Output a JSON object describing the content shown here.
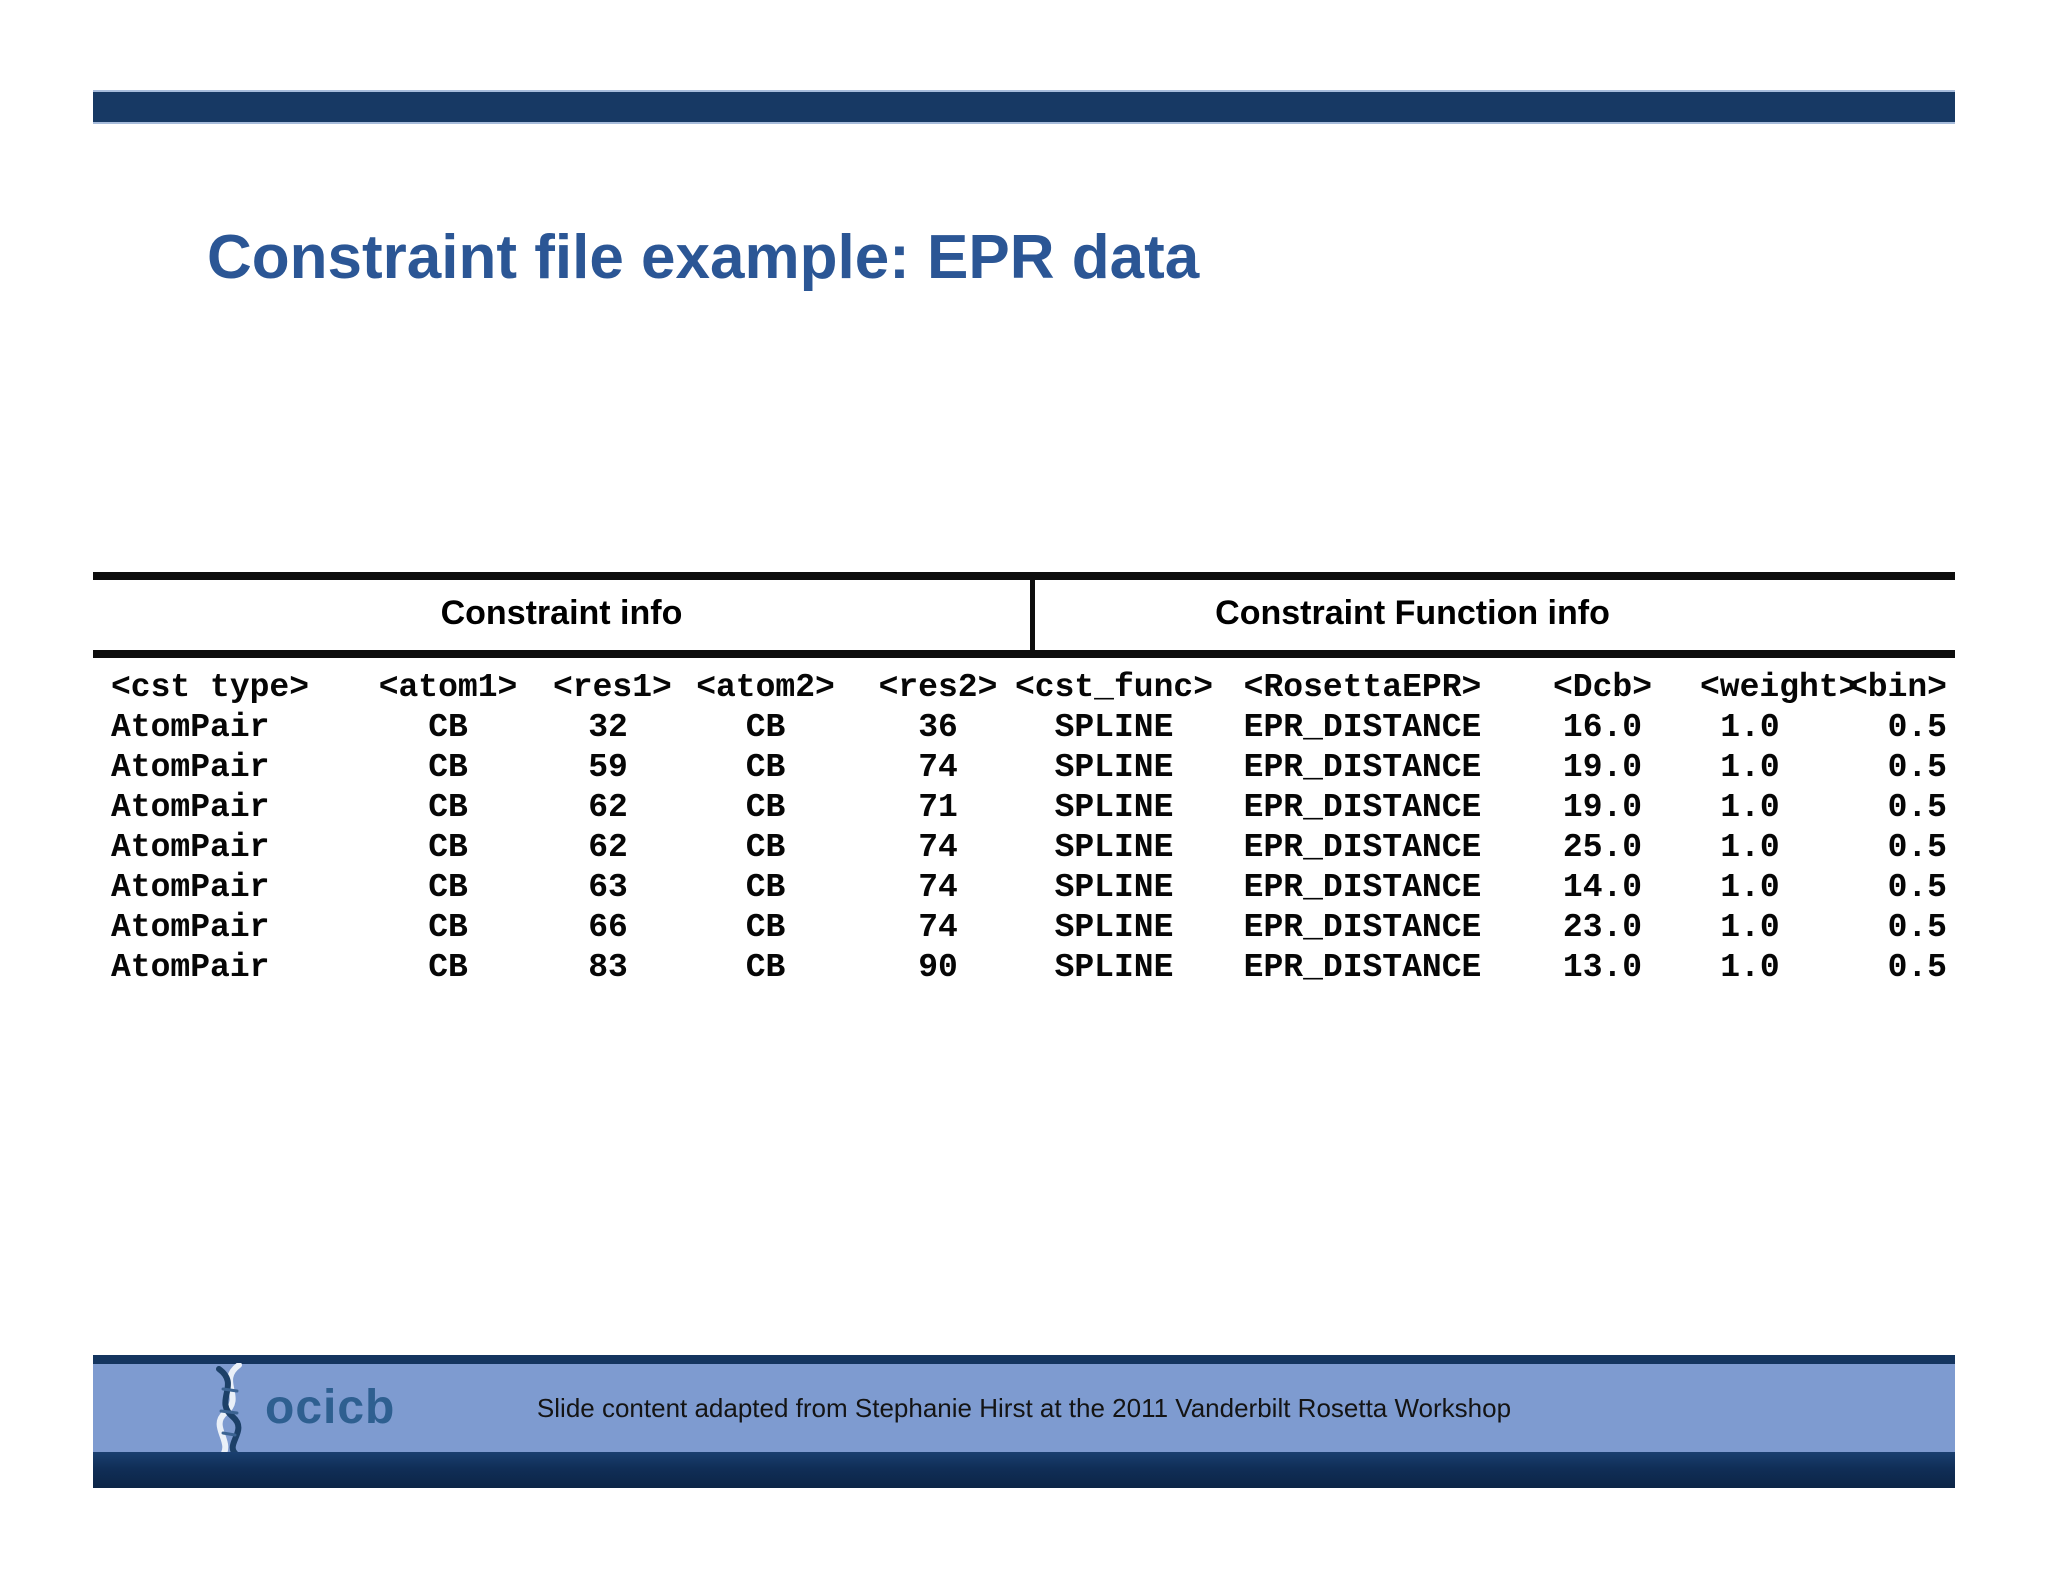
{
  "slide": {
    "title": "Constraint file example: EPR data",
    "footer": {
      "logo_text": "ocicb",
      "credit": "Slide content adapted from Stephanie Hirst at the 2011 Vanderbilt Rosetta Workshop"
    },
    "colors": {
      "accent_navy": "#173964",
      "title_blue": "#2b5695",
      "footer_light_blue": "#7e9bd0",
      "footer_navy": "#102e57",
      "table_line_black": "#0d0d0d"
    }
  },
  "table": {
    "group_headers": [
      {
        "label": "Constraint info"
      },
      {
        "label": "Constraint Function info"
      }
    ],
    "columns": [
      "<cst type>",
      "<atom1>",
      "<res1>",
      "<atom2>",
      "<res2>",
      "<cst_func>",
      "<RosettaEPR>",
      "<Dcb>",
      "<weight>",
      "<bin>"
    ],
    "rows": [
      [
        "AtomPair",
        "CB",
        "32",
        "CB",
        "36",
        "SPLINE",
        "EPR_DISTANCE",
        "16.0",
        "1.0",
        "0.5"
      ],
      [
        "AtomPair",
        "CB",
        "59",
        "CB",
        "74",
        "SPLINE",
        "EPR_DISTANCE",
        "19.0",
        "1.0",
        "0.5"
      ],
      [
        "AtomPair",
        "CB",
        "62",
        "CB",
        "71",
        "SPLINE",
        "EPR_DISTANCE",
        "19.0",
        "1.0",
        "0.5"
      ],
      [
        "AtomPair",
        "CB",
        "62",
        "CB",
        "74",
        "SPLINE",
        "EPR_DISTANCE",
        "25.0",
        "1.0",
        "0.5"
      ],
      [
        "AtomPair",
        "CB",
        "63",
        "CB",
        "74",
        "SPLINE",
        "EPR_DISTANCE",
        "14.0",
        "1.0",
        "0.5"
      ],
      [
        "AtomPair",
        "CB",
        "66",
        "CB",
        "74",
        "SPLINE",
        "EPR_DISTANCE",
        "23.0",
        "1.0",
        "0.5"
      ],
      [
        "AtomPair",
        "CB",
        "83",
        "CB",
        "90",
        "SPLINE",
        "EPR_DISTANCE",
        "13.0",
        "1.0",
        "0.5"
      ]
    ]
  }
}
